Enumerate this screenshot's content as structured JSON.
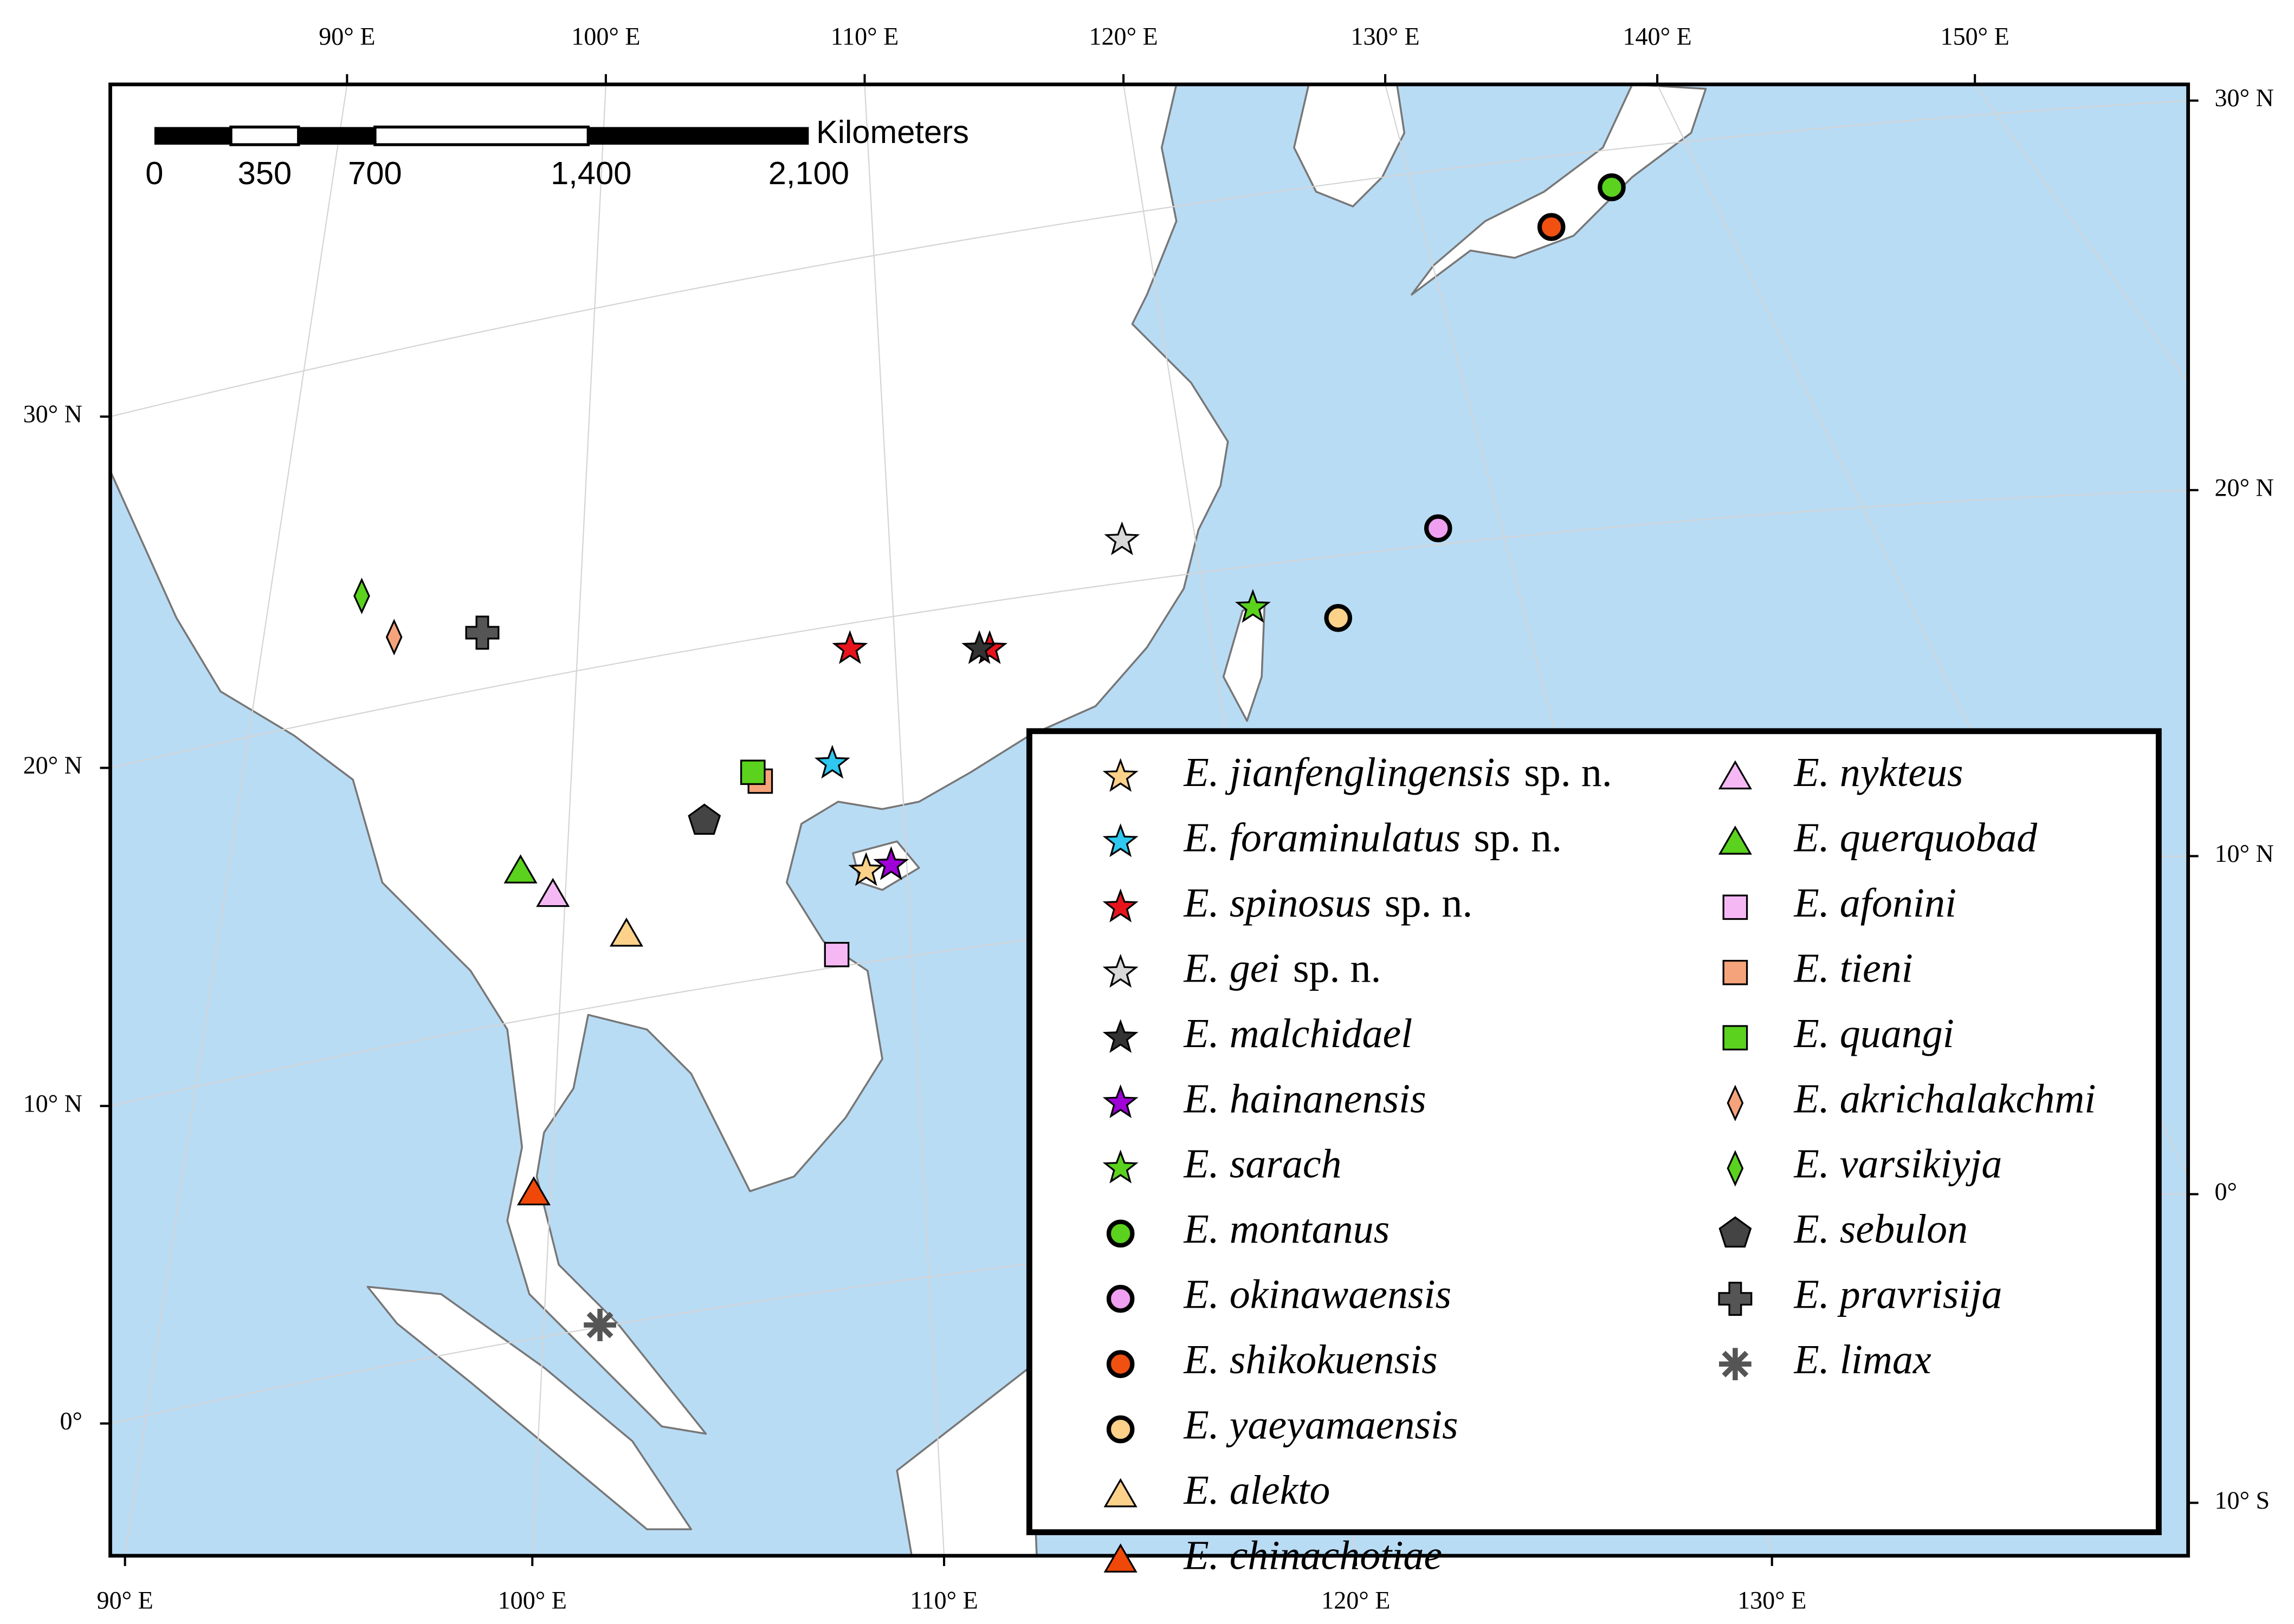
{
  "map": {
    "graticule_top": [
      "90° E",
      "100° E",
      "110° E",
      "120° E",
      "130° E",
      "140° E",
      "150° E"
    ],
    "graticule_bottom": [
      "90° E",
      "100° E",
      "110° E",
      "120° E",
      "130° E"
    ],
    "graticule_left": [
      "30° N",
      "20° N",
      "10° N",
      "0°"
    ],
    "graticule_right": [
      "30° N",
      "20° N",
      "10° N",
      "0°",
      "10° S"
    ],
    "scale_bar": {
      "unit": "Kilometers",
      "labels": [
        "0",
        "350",
        "700",
        "1,400",
        "2,100"
      ]
    },
    "legend": [
      {
        "name": "E. jianfenglingensis",
        "note": "sp. n.",
        "marker": "star",
        "color": "#fcd18a"
      },
      {
        "name": "E. foraminulatus",
        "note": "sp. n.",
        "marker": "star",
        "color": "#2ec8f0"
      },
      {
        "name": "E. spinosus",
        "note": "sp. n.",
        "marker": "star",
        "color": "#e8141c"
      },
      {
        "name": "E. gei",
        "note": "sp. n.",
        "marker": "star",
        "color": "#d8d8d8"
      },
      {
        "name": "E. malchidael",
        "marker": "star",
        "color": "#333333"
      },
      {
        "name": "E. hainanensis",
        "marker": "star",
        "color": "#a000d8"
      },
      {
        "name": "E. sarach",
        "marker": "star",
        "color": "#5ad21e"
      },
      {
        "name": "E. montanus",
        "marker": "circle",
        "color": "#5ad21e"
      },
      {
        "name": "E. okinawaensis",
        "marker": "circle",
        "color": "#f0a0f0"
      },
      {
        "name": "E. shikokuensis",
        "marker": "circle",
        "color": "#f05010"
      },
      {
        "name": "E. yaeyamaensis",
        "marker": "circle",
        "color": "#fcd18a"
      },
      {
        "name": "E. alekto",
        "marker": "triangle",
        "color": "#fcd18a"
      },
      {
        "name": "E. chinachotiae",
        "marker": "triangle",
        "color": "#f04808"
      },
      {
        "name": "E. nykteus",
        "marker": "triangle",
        "color": "#f5b8f5"
      },
      {
        "name": "E. querquobad",
        "marker": "triangle",
        "color": "#5ad21e"
      },
      {
        "name": "E. afonini",
        "marker": "square",
        "color": "#f5b8f5"
      },
      {
        "name": "E. tieni",
        "marker": "square",
        "color": "#f5a37a"
      },
      {
        "name": "E. quangi",
        "marker": "square",
        "color": "#5ad21e"
      },
      {
        "name": "E. akrichalakchmi",
        "marker": "diamond",
        "color": "#f5a37a"
      },
      {
        "name": "E. varsikiyja",
        "marker": "diamond",
        "color": "#5ad21e"
      },
      {
        "name": "E. sebulon",
        "marker": "pentagon",
        "color": "#444444"
      },
      {
        "name": "E. pravrisija",
        "marker": "cross",
        "color": "#555555"
      },
      {
        "name": "E. limax",
        "marker": "asterisk",
        "color": "#555555"
      }
    ]
  }
}
